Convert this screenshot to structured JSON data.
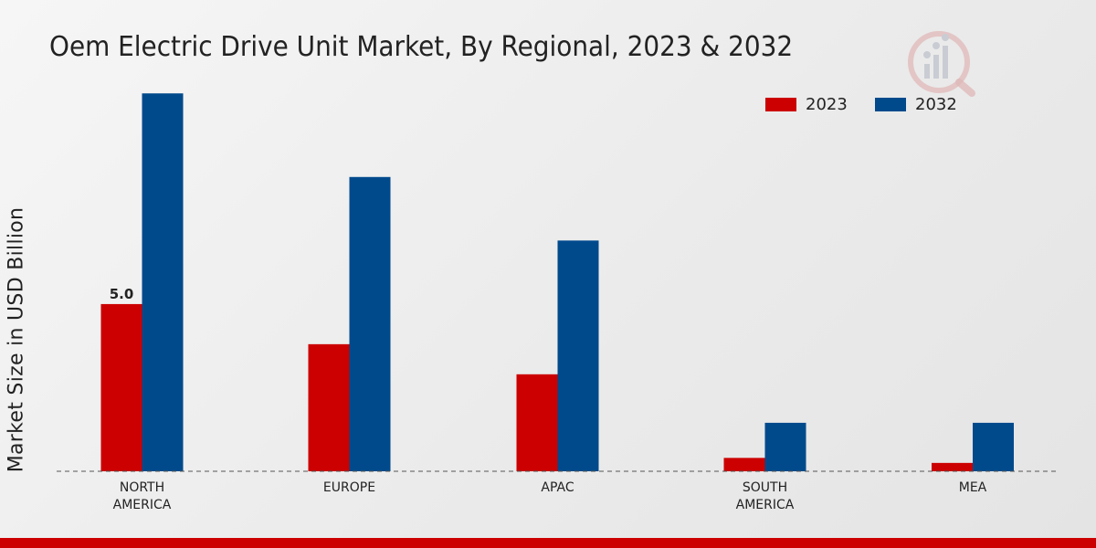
{
  "title": "Oem Electric Drive Unit Market, By Regional, 2023 & 2032",
  "colors": {
    "2023": "#cc0000",
    "2032": "#004a8c",
    "accent_bar": "#cc0000"
  },
  "legend": {
    "item_2023": "2023",
    "item_2032": "2032"
  },
  "logo": {
    "icon": "market-research-logo-watermark"
  },
  "chart_data": {
    "type": "bar",
    "title": "Oem Electric Drive Unit Market, By Regional, 2023 & 2032",
    "ylabel": "Market Size in USD Billion",
    "xlabel": "",
    "categories": [
      "NORTH\nAMERICA",
      "EUROPE",
      "APAC",
      "SOUTH\nAMERICA",
      "MEA"
    ],
    "series": [
      {
        "name": "2023",
        "values": [
          5.0,
          3.8,
          2.9,
          0.4,
          0.25
        ]
      },
      {
        "name": "2032",
        "values": [
          11.3,
          8.8,
          6.9,
          1.45,
          1.45
        ]
      }
    ],
    "data_labels": [
      {
        "series": "2023",
        "category_index": 0,
        "text": "5.0"
      }
    ],
    "ylim": [
      0,
      13
    ],
    "legend_position": "top-right",
    "grid": false
  }
}
